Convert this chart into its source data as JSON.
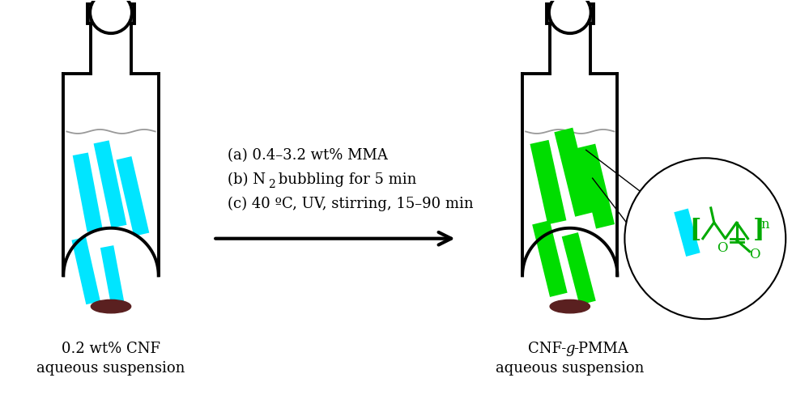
{
  "bg_color": "#ffffff",
  "bottle_color": "#000000",
  "cyan_color": "#00e5ff",
  "green_color": "#00dd00",
  "brown_color": "#5a2020",
  "dark_gray": "#404040",
  "text_color": "#000000",
  "green_text_color": "#00aa00",
  "label1_line1": "0.2 wt% CNF",
  "label1_line2": "aqueous suspension",
  "label2_line2": "aqueous suspension",
  "step_a": "(a) 0.4–3.2 wt% MMA",
  "step_b_pre": "(b) N",
  "step_b_sub": "2",
  "step_b_post": " bubbling for 5 min",
  "step_c": "(c) 40 ºC, UV, stirring, 15–90 min",
  "figsize": [
    9.79,
    4.88
  ],
  "dpi": 100
}
